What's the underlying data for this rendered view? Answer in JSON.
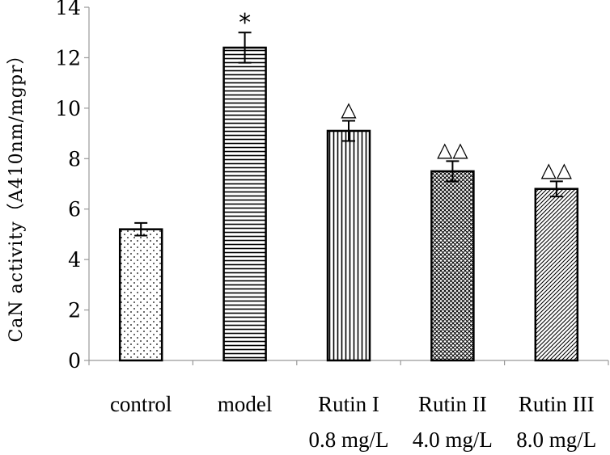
{
  "chart_data": {
    "type": "bar",
    "title": "",
    "xlabel": "",
    "ylabel": "CaN activity（A410nm/mgpr）",
    "ylim": [
      0,
      14
    ],
    "yticks": [
      0,
      2,
      4,
      6,
      8,
      10,
      12,
      14
    ],
    "grid": false,
    "legend": "none",
    "categories": [
      {
        "name": "control",
        "dose": ""
      },
      {
        "name": "model",
        "dose": ""
      },
      {
        "name": "Rutin I",
        "dose": "0.8 mg/L"
      },
      {
        "name": "Rutin II",
        "dose": "4.0 mg/L"
      },
      {
        "name": "Rutin III",
        "dose": "8.0 mg/L"
      }
    ],
    "values": [
      5.2,
      12.4,
      9.1,
      7.5,
      6.8
    ],
    "errors": [
      0.25,
      0.6,
      0.4,
      0.4,
      0.3
    ],
    "annotations": [
      "",
      "*",
      "△",
      "△△",
      "△△"
    ],
    "patterns": [
      "dots",
      "horizontal-lines",
      "vertical-lines",
      "crosshatch",
      "diagonal-lines"
    ],
    "colors": {
      "stroke": "#000000",
      "fill": "#ffffff",
      "pattern": "#000000"
    }
  }
}
